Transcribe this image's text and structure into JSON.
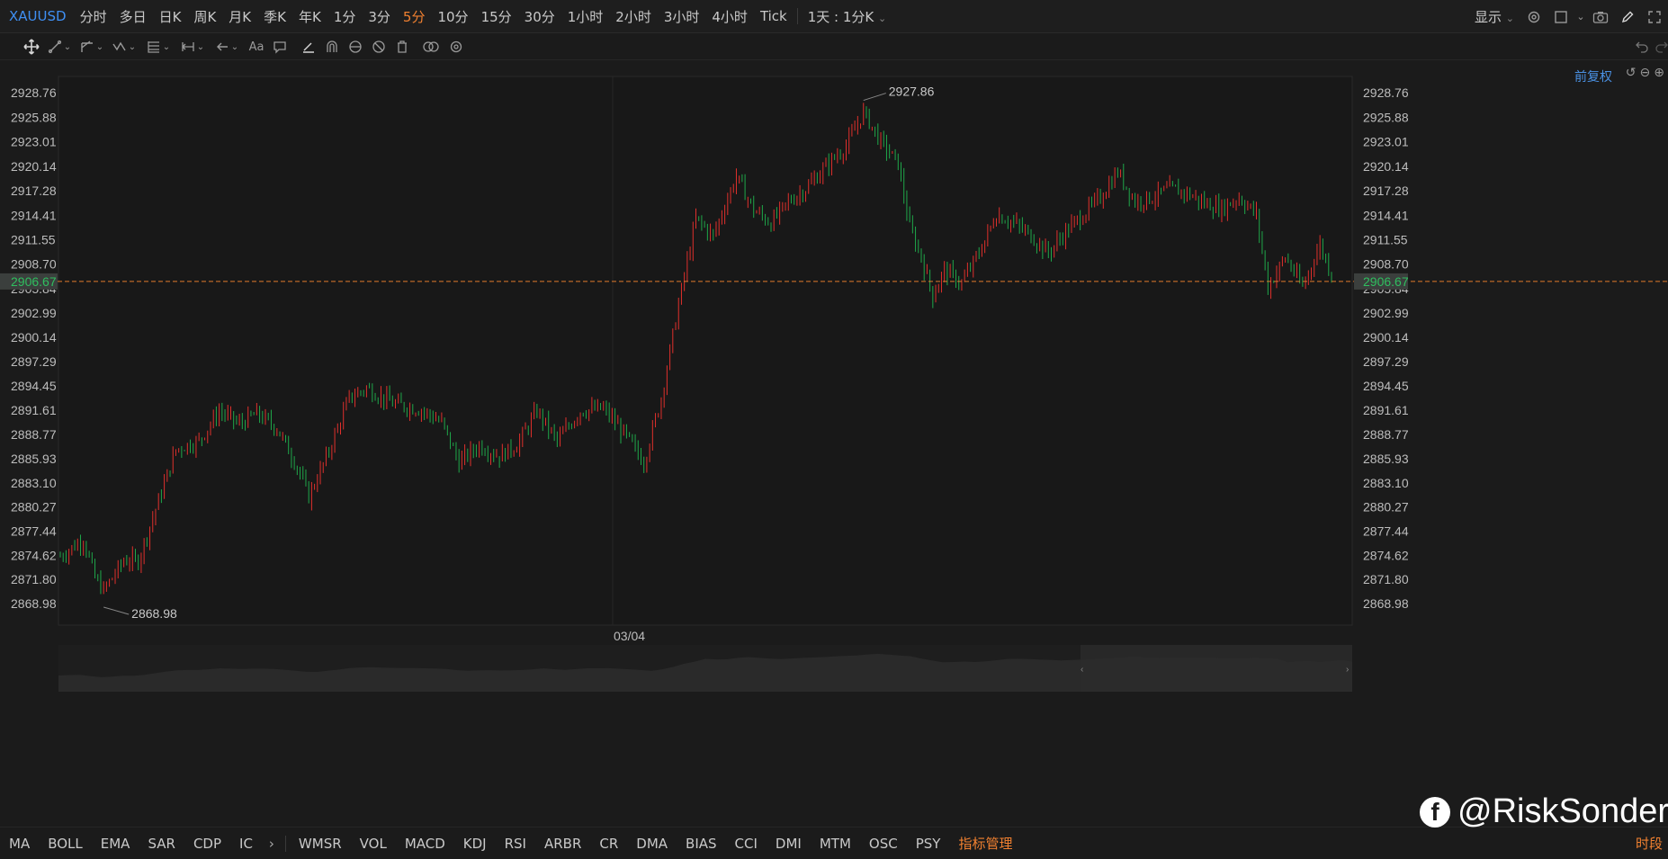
{
  "topbar": {
    "symbol": "XAUUSD",
    "periods": [
      {
        "label": "分时",
        "active": false
      },
      {
        "label": "多日",
        "active": false
      },
      {
        "label": "日K",
        "active": false
      },
      {
        "label": "周K",
        "active": false
      },
      {
        "label": "月K",
        "active": false
      },
      {
        "label": "季K",
        "active": false
      },
      {
        "label": "年K",
        "active": false
      },
      {
        "label": "1分",
        "active": false
      },
      {
        "label": "3分",
        "active": false
      },
      {
        "label": "5分",
        "active": true
      },
      {
        "label": "10分",
        "active": false
      },
      {
        "label": "15分",
        "active": false
      },
      {
        "label": "30分",
        "active": false
      },
      {
        "label": "1小时",
        "active": false
      },
      {
        "label": "2小时",
        "active": false
      },
      {
        "label": "3小时",
        "active": false
      },
      {
        "label": "4小时",
        "active": false
      },
      {
        "label": "Tick",
        "active": false
      }
    ],
    "range_select": "1天 : 1分K",
    "display_label": "显示"
  },
  "chart": {
    "adjust_label": "前复权",
    "date_label": "03/04",
    "current_price": "2906.67",
    "high_annotation": "2927.86",
    "low_annotation": "2868.98",
    "y_ticks": [
      "2928.76",
      "2925.88",
      "2923.01",
      "2920.14",
      "2917.28",
      "2914.41",
      "2911.55",
      "2908.70",
      "2905.84",
      "2902.99",
      "2900.14",
      "2897.29",
      "2894.45",
      "2891.61",
      "2888.77",
      "2885.93",
      "2883.10",
      "2880.27",
      "2877.44",
      "2874.62",
      "2871.80",
      "2868.98"
    ],
    "colors": {
      "up": "#e0302c",
      "down": "#1fa84a",
      "price_line": "#e07a2b",
      "accent": "#f08030",
      "link": "#4a90e2"
    }
  },
  "chart_data": {
    "type": "candlestick",
    "ylim": [
      2866.5,
      2930.5
    ],
    "anchors": [
      [
        0,
        2874.5
      ],
      [
        8,
        2876.5
      ],
      [
        12,
        2872
      ],
      [
        15,
        2870.5
      ],
      [
        22,
        2874
      ],
      [
        27,
        2874
      ],
      [
        33,
        2880
      ],
      [
        40,
        2887
      ],
      [
        48,
        2888
      ],
      [
        55,
        2891.5
      ],
      [
        62,
        2890
      ],
      [
        68,
        2891.2
      ],
      [
        75,
        2889.5
      ],
      [
        82,
        2885
      ],
      [
        86,
        2881.5
      ],
      [
        92,
        2886
      ],
      [
        100,
        2893
      ],
      [
        106,
        2894.2
      ],
      [
        115,
        2892.4
      ],
      [
        125,
        2891.6
      ],
      [
        132,
        2890.2
      ],
      [
        138,
        2885.5
      ],
      [
        145,
        2887.5
      ],
      [
        152,
        2886.2
      ],
      [
        158,
        2887.5
      ],
      [
        165,
        2891.5
      ],
      [
        172,
        2888
      ],
      [
        180,
        2891.5
      ],
      [
        188,
        2891.8
      ],
      [
        196,
        2888.5
      ],
      [
        202,
        2885.5
      ],
      [
        208,
        2893
      ],
      [
        214,
        2904
      ],
      [
        220,
        2914
      ],
      [
        226,
        2912
      ],
      [
        234,
        2919
      ],
      [
        240,
        2915
      ],
      [
        246,
        2913.5
      ],
      [
        252,
        2916
      ],
      [
        258,
        2917.5
      ],
      [
        266,
        2920.5
      ],
      [
        272,
        2922.5
      ],
      [
        278,
        2926.5
      ],
      [
        284,
        2923
      ],
      [
        290,
        2920.5
      ],
      [
        294,
        2913
      ],
      [
        298,
        2909.5
      ],
      [
        302,
        2905
      ],
      [
        306,
        2908
      ],
      [
        312,
        2906.5
      ],
      [
        318,
        2910
      ],
      [
        324,
        2914.5
      ],
      [
        330,
        2913.5
      ],
      [
        336,
        2912
      ],
      [
        342,
        2910
      ],
      [
        348,
        2912.5
      ],
      [
        354,
        2914.5
      ],
      [
        360,
        2916.5
      ],
      [
        366,
        2919.5
      ],
      [
        372,
        2916
      ],
      [
        378,
        2916.5
      ],
      [
        384,
        2917.5
      ],
      [
        390,
        2917
      ],
      [
        396,
        2915.8
      ],
      [
        402,
        2915.2
      ],
      [
        408,
        2916.5
      ],
      [
        414,
        2914.5
      ],
      [
        418,
        2906
      ],
      [
        424,
        2909.5
      ],
      [
        430,
        2906
      ],
      [
        436,
        2911
      ],
      [
        441,
        2906.5
      ]
    ],
    "count": 441
  },
  "indicators": {
    "left": [
      "MA",
      "BOLL",
      "EMA",
      "SAR",
      "CDP",
      "IC"
    ],
    "right": [
      "WMSR",
      "VOL",
      "MACD",
      "KDJ",
      "RSI",
      "ARBR",
      "CR",
      "DMA",
      "BIAS",
      "CCI",
      "DMI",
      "MTM",
      "OSC",
      "PSY"
    ],
    "manager": "指标管理",
    "period": "时段"
  },
  "watermark": "@RiskSonder"
}
